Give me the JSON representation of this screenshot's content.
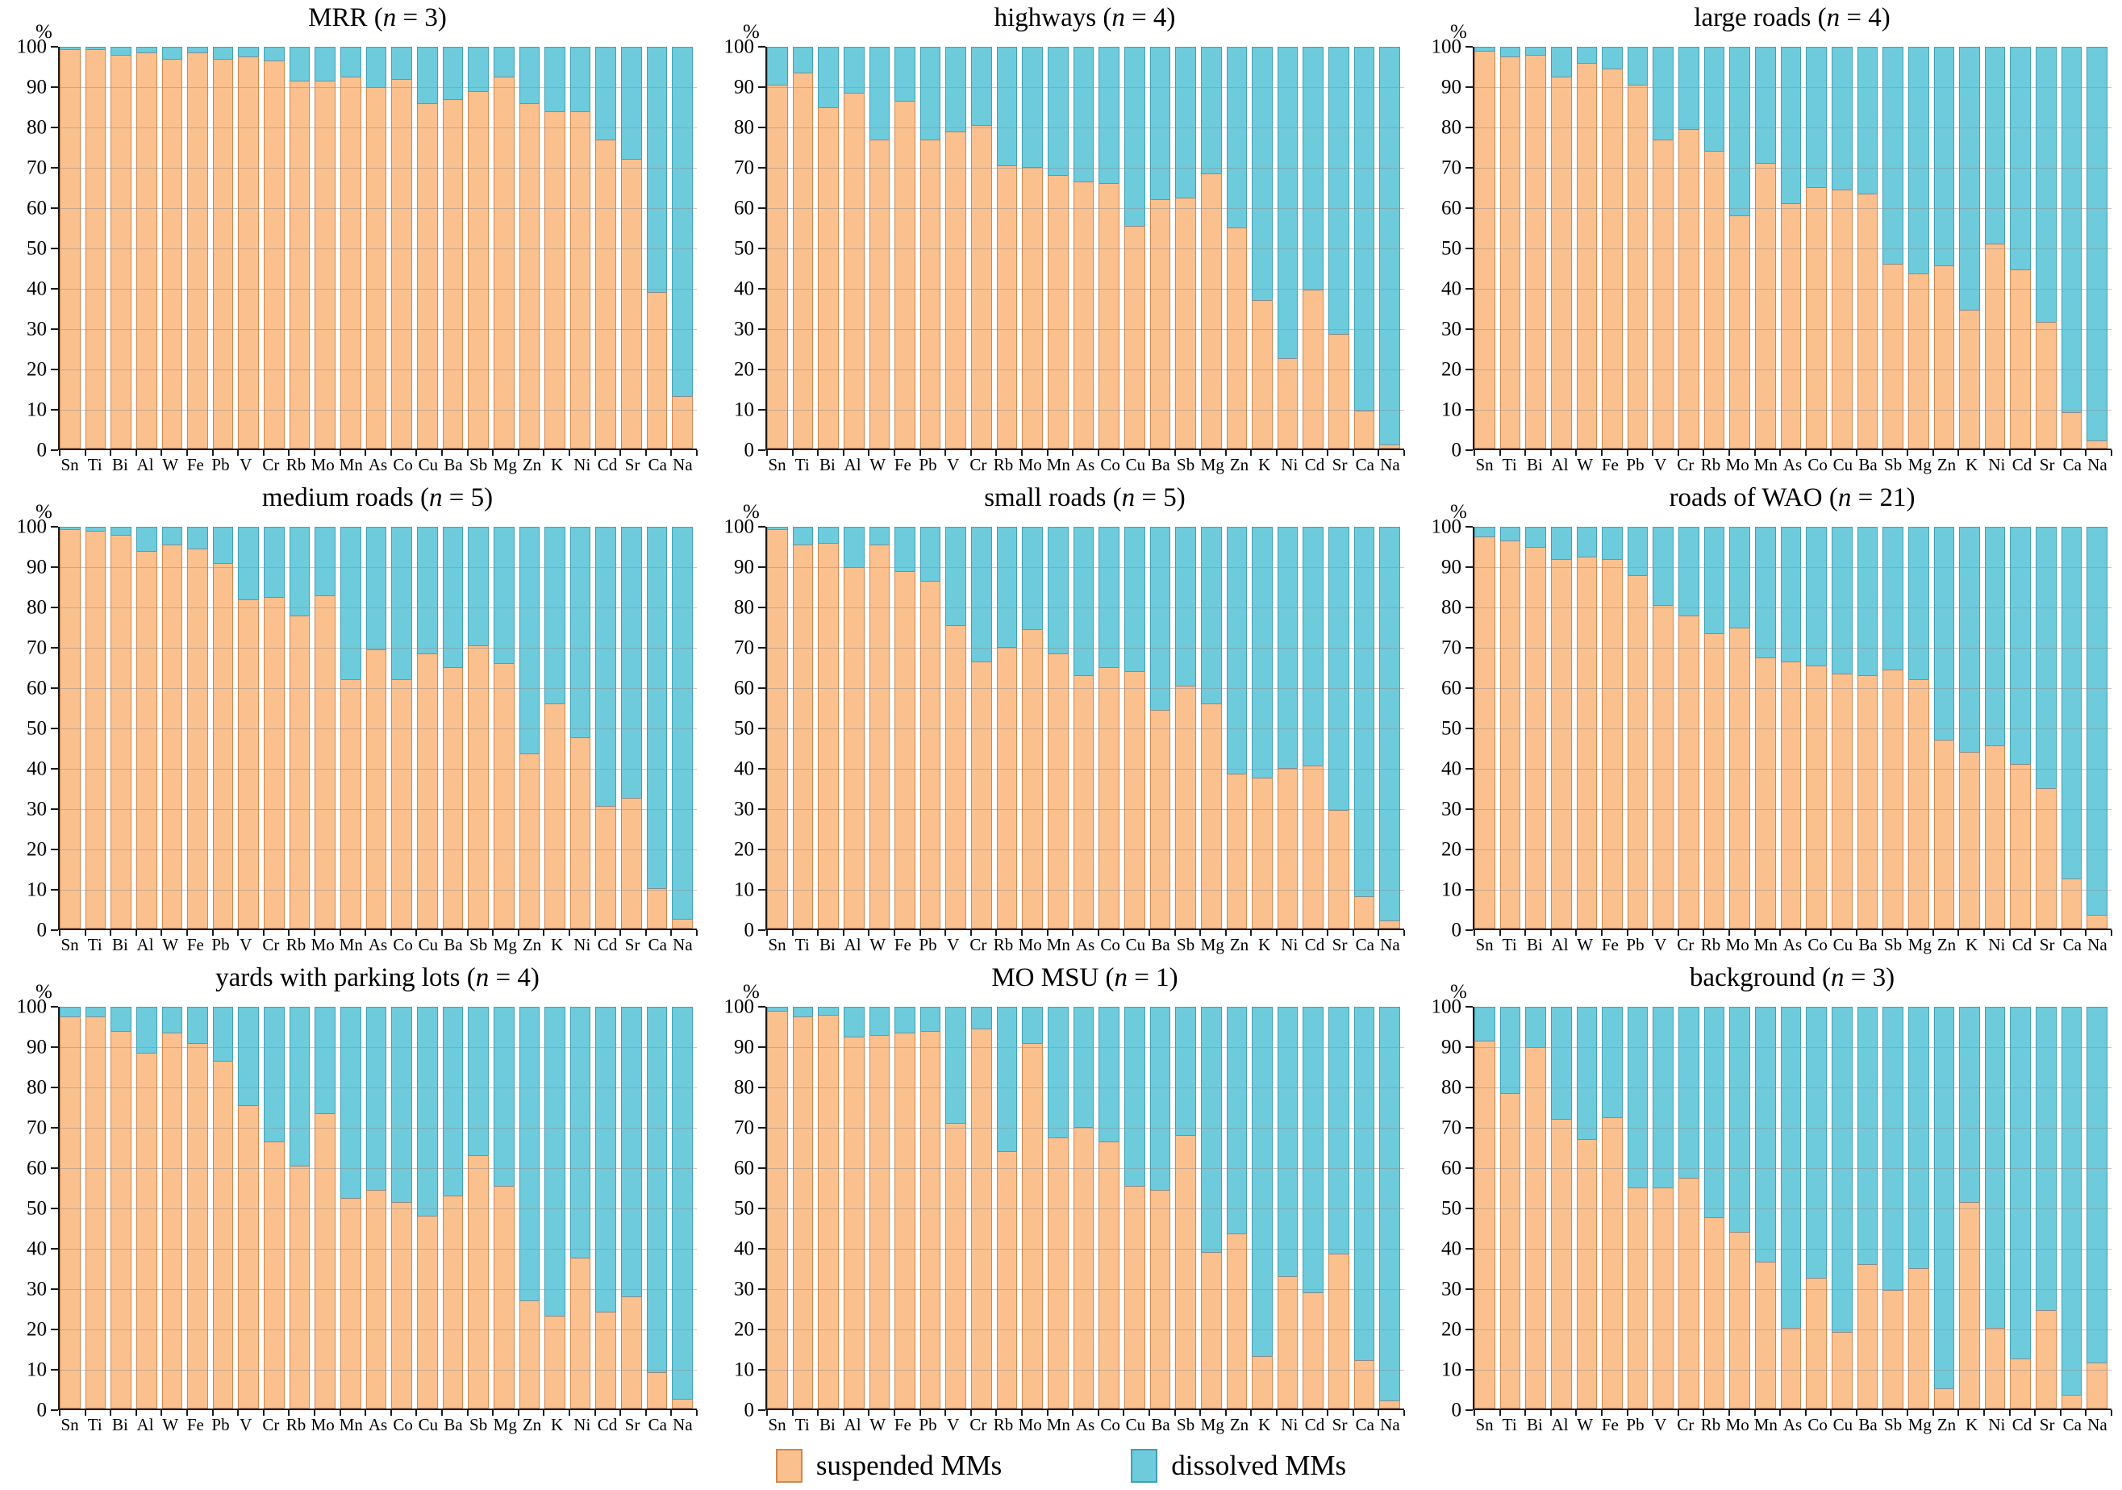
{
  "figure": {
    "ylabel": "%",
    "y_ticks": [
      0,
      10,
      20,
      30,
      40,
      50,
      60,
      70,
      80,
      90,
      100
    ],
    "colors": {
      "suspended": "#FAC08E",
      "suspended_edge": "#D0874E",
      "dissolved": "#6DCBDC",
      "dissolved_edge": "#3FA0B5"
    },
    "legend": [
      {
        "label": "suspended MMs",
        "color": "#FAC08E"
      },
      {
        "label": "dissolved MMs",
        "color": "#6DCBDC"
      }
    ]
  },
  "chart_data": [
    {
      "type": "bar",
      "stacked": true,
      "title": "MRR (n = 3)",
      "group": "MRR",
      "n": 3,
      "ylabel": "%",
      "ylim": [
        0,
        100
      ],
      "grid": true,
      "legend_position": "bottom",
      "categories": [
        "Sn",
        "Ti",
        "Bi",
        "Al",
        "W",
        "Fe",
        "Pb",
        "V",
        "Cr",
        "Rb",
        "Mo",
        "Mn",
        "As",
        "Co",
        "Cu",
        "Ba",
        "Sb",
        "Mg",
        "Zn",
        "K",
        "Ni",
        "Cd",
        "Sr",
        "Ca",
        "Na"
      ],
      "series": [
        {
          "name": "suspended MMs",
          "values": [
            99.5,
            99.5,
            98,
            98.5,
            97,
            98.5,
            97,
            97.5,
            96.5,
            91.5,
            91.5,
            92.5,
            90,
            92,
            86,
            87,
            89,
            92.5,
            86,
            84,
            84,
            77,
            72,
            39,
            13
          ]
        },
        {
          "name": "dissolved MMs",
          "values": [
            0.5,
            0.5,
            2,
            1.5,
            3,
            1.5,
            3,
            2.5,
            3.5,
            8.5,
            8.5,
            7.5,
            10,
            8,
            14,
            13,
            11,
            7.5,
            14,
            16,
            16,
            23,
            28,
            61,
            87
          ]
        }
      ]
    },
    {
      "type": "bar",
      "stacked": true,
      "title": "highways (n = 4)",
      "group": "highways",
      "n": 4,
      "ylabel": "%",
      "ylim": [
        0,
        100
      ],
      "grid": true,
      "legend_position": "bottom",
      "categories": [
        "Sn",
        "Ti",
        "Bi",
        "Al",
        "W",
        "Fe",
        "Pb",
        "V",
        "Cr",
        "Rb",
        "Mo",
        "Mn",
        "As",
        "Co",
        "Cu",
        "Ba",
        "Sb",
        "Mg",
        "Zn",
        "K",
        "Ni",
        "Cd",
        "Sr",
        "Ca",
        "Na"
      ],
      "series": [
        {
          "name": "suspended MMs",
          "values": [
            90.5,
            93.5,
            85,
            88.5,
            77,
            86.5,
            77,
            79,
            80.5,
            70.5,
            70,
            68,
            66.5,
            66,
            55.5,
            62,
            62.5,
            68.5,
            55,
            37,
            22.5,
            39.5,
            28.5,
            9.5,
            1
          ]
        },
        {
          "name": "dissolved MMs",
          "values": [
            9.5,
            6.5,
            15,
            11.5,
            23,
            13.5,
            23,
            21,
            19.5,
            29.5,
            30,
            32,
            33.5,
            34,
            44.5,
            38,
            37.5,
            31.5,
            45,
            63,
            77.5,
            60.5,
            71.5,
            90.5,
            99
          ]
        }
      ]
    },
    {
      "type": "bar",
      "stacked": true,
      "title": "large roads (n = 4)",
      "group": "large roads",
      "n": 4,
      "ylabel": "%",
      "ylim": [
        0,
        100
      ],
      "grid": true,
      "legend_position": "bottom",
      "categories": [
        "Sn",
        "Ti",
        "Bi",
        "Al",
        "W",
        "Fe",
        "Pb",
        "V",
        "Cr",
        "Rb",
        "Mo",
        "Mn",
        "As",
        "Co",
        "Cu",
        "Ba",
        "Sb",
        "Mg",
        "Zn",
        "K",
        "Ni",
        "Cd",
        "Sr",
        "Ca",
        "Na"
      ],
      "series": [
        {
          "name": "suspended MMs",
          "values": [
            99,
            97.5,
            98,
            92.5,
            96,
            94.5,
            90.5,
            77,
            79.5,
            74,
            58,
            71,
            61,
            65,
            64.5,
            63.5,
            46,
            43.5,
            45.5,
            34.5,
            51,
            44.5,
            31.5,
            9,
            2
          ]
        },
        {
          "name": "dissolved MMs",
          "values": [
            1,
            2.5,
            2,
            7.5,
            4,
            5.5,
            9.5,
            23,
            20.5,
            26,
            42,
            29,
            39,
            35,
            35.5,
            36.5,
            54,
            56.5,
            54.5,
            65.5,
            49,
            55.5,
            68.5,
            91,
            98
          ]
        }
      ]
    },
    {
      "type": "bar",
      "stacked": true,
      "title": "medium roads (n = 5)",
      "group": "medium roads",
      "n": 5,
      "ylabel": "%",
      "ylim": [
        0,
        100
      ],
      "grid": true,
      "legend_position": "bottom",
      "categories": [
        "Sn",
        "Ti",
        "Bi",
        "Al",
        "W",
        "Fe",
        "Pb",
        "V",
        "Cr",
        "Rb",
        "Mo",
        "Mn",
        "As",
        "Co",
        "Cu",
        "Ba",
        "Sb",
        "Mg",
        "Zn",
        "K",
        "Ni",
        "Cd",
        "Sr",
        "Ca",
        "Na"
      ],
      "series": [
        {
          "name": "suspended MMs",
          "values": [
            99.5,
            99,
            98,
            94,
            95.5,
            94.5,
            91,
            82,
            82.5,
            78,
            83,
            62,
            69.5,
            62,
            68.5,
            65,
            70.5,
            66,
            43.5,
            56,
            47.5,
            30.5,
            32.5,
            10,
            2.5
          ]
        },
        {
          "name": "dissolved MMs",
          "values": [
            0.5,
            1,
            2,
            6,
            4.5,
            5.5,
            9,
            18,
            17.5,
            22,
            17,
            38,
            30.5,
            38,
            31.5,
            35,
            29.5,
            34,
            56.5,
            44,
            52.5,
            69.5,
            67.5,
            90,
            97.5
          ]
        }
      ]
    },
    {
      "type": "bar",
      "stacked": true,
      "title": "small roads (n = 5)",
      "group": "small roads",
      "n": 5,
      "ylabel": "%",
      "ylim": [
        0,
        100
      ],
      "grid": true,
      "legend_position": "bottom",
      "categories": [
        "Sn",
        "Ti",
        "Bi",
        "Al",
        "W",
        "Fe",
        "Pb",
        "V",
        "Cr",
        "Rb",
        "Mo",
        "Mn",
        "As",
        "Co",
        "Cu",
        "Ba",
        "Sb",
        "Mg",
        "Zn",
        "K",
        "Ni",
        "Cd",
        "Sr",
        "Ca",
        "Na"
      ],
      "series": [
        {
          "name": "suspended MMs",
          "values": [
            99.5,
            95.5,
            96,
            90,
            95.5,
            89,
            86.5,
            75.5,
            66.5,
            70,
            74.5,
            68.5,
            63,
            65,
            64,
            54.5,
            60.5,
            56,
            38.5,
            37.5,
            40,
            40.5,
            29.5,
            8,
            2
          ]
        },
        {
          "name": "dissolved MMs",
          "values": [
            0.5,
            4.5,
            4,
            10,
            4.5,
            11,
            13.5,
            24.5,
            33.5,
            30,
            25.5,
            31.5,
            37,
            35,
            36,
            45.5,
            39.5,
            44,
            61.5,
            62.5,
            60,
            59.5,
            70.5,
            92,
            98
          ]
        }
      ]
    },
    {
      "type": "bar",
      "stacked": true,
      "title": "roads of WAO (n = 21)",
      "group": "roads of WAO",
      "n": 21,
      "ylabel": "%",
      "ylim": [
        0,
        100
      ],
      "grid": true,
      "legend_position": "bottom",
      "categories": [
        "Sn",
        "Ti",
        "Bi",
        "Al",
        "W",
        "Fe",
        "Pb",
        "V",
        "Cr",
        "Rb",
        "Mo",
        "Mn",
        "As",
        "Co",
        "Cu",
        "Ba",
        "Sb",
        "Mg",
        "Zn",
        "K",
        "Ni",
        "Cd",
        "Sr",
        "Ca",
        "Na"
      ],
      "series": [
        {
          "name": "suspended MMs",
          "values": [
            97.5,
            96.5,
            95,
            92,
            92.5,
            92,
            88,
            80.5,
            78,
            73.5,
            75,
            67.5,
            66.5,
            65.5,
            63.5,
            63,
            64.5,
            62,
            47,
            44,
            45.5,
            41,
            35,
            12.5,
            3.5
          ]
        },
        {
          "name": "dissolved MMs",
          "values": [
            2.5,
            3.5,
            5,
            8,
            7.5,
            8,
            12,
            19.5,
            22,
            26.5,
            25,
            32.5,
            33.5,
            34.5,
            36.5,
            37,
            35.5,
            38,
            53,
            56,
            54.5,
            59,
            65,
            87.5,
            96.5
          ]
        }
      ]
    },
    {
      "type": "bar",
      "stacked": true,
      "title": "yards with parking lots (n = 4)",
      "group": "yards with parking lots",
      "n": 4,
      "ylabel": "%",
      "ylim": [
        0,
        100
      ],
      "grid": true,
      "legend_position": "bottom",
      "categories": [
        "Sn",
        "Ti",
        "Bi",
        "Al",
        "W",
        "Fe",
        "Pb",
        "V",
        "Cr",
        "Rb",
        "Mo",
        "Mn",
        "As",
        "Co",
        "Cu",
        "Ba",
        "Sb",
        "Mg",
        "Zn",
        "K",
        "Ni",
        "Cd",
        "Sr",
        "Ca",
        "Na"
      ],
      "series": [
        {
          "name": "suspended MMs",
          "values": [
            97.5,
            97.5,
            94,
            88.5,
            93.5,
            91,
            86.5,
            75.5,
            66.5,
            60.5,
            73.5,
            52.5,
            54.5,
            51.5,
            48,
            53,
            63,
            55.5,
            27,
            23,
            37.5,
            24,
            28,
            9,
            2.5
          ]
        },
        {
          "name": "dissolved MMs",
          "values": [
            2.5,
            2.5,
            6,
            11.5,
            6.5,
            9,
            13.5,
            24.5,
            33.5,
            39.5,
            26.5,
            47.5,
            45.5,
            48.5,
            52,
            47,
            37,
            44.5,
            73,
            77,
            62.5,
            76,
            72,
            91,
            97.5
          ]
        }
      ]
    },
    {
      "type": "bar",
      "stacked": true,
      "title": "MO MSU (n = 1)",
      "group": "MO MSU",
      "n": 1,
      "ylabel": "%",
      "ylim": [
        0,
        100
      ],
      "grid": true,
      "legend_position": "bottom",
      "categories": [
        "Sn",
        "Ti",
        "Bi",
        "Al",
        "W",
        "Fe",
        "Pb",
        "V",
        "Cr",
        "Rb",
        "Mo",
        "Mn",
        "As",
        "Co",
        "Cu",
        "Ba",
        "Sb",
        "Mg",
        "Zn",
        "K",
        "Ni",
        "Cd",
        "Sr",
        "Ca",
        "Na"
      ],
      "series": [
        {
          "name": "suspended MMs",
          "values": [
            99,
            97.5,
            98,
            92.5,
            93,
            93.5,
            94,
            71,
            94.5,
            64,
            91,
            67.5,
            70,
            66.5,
            55.5,
            54.5,
            68,
            39,
            43.5,
            13,
            33,
            29,
            38.5,
            12,
            2
          ]
        },
        {
          "name": "dissolved MMs",
          "values": [
            1,
            2.5,
            2,
            7.5,
            7,
            6.5,
            6,
            29,
            5.5,
            36,
            9,
            32.5,
            30,
            33.5,
            44.5,
            45.5,
            32,
            61,
            56.5,
            87,
            67,
            71,
            61.5,
            88,
            98
          ]
        }
      ]
    },
    {
      "type": "bar",
      "stacked": true,
      "title": "background (n = 3)",
      "group": "background",
      "n": 3,
      "ylabel": "%",
      "ylim": [
        0,
        100
      ],
      "grid": true,
      "legend_position": "bottom",
      "categories": [
        "Sn",
        "Ti",
        "Bi",
        "Al",
        "W",
        "Fe",
        "Pb",
        "V",
        "Cr",
        "Rb",
        "Mo",
        "Mn",
        "As",
        "Co",
        "Cu",
        "Ba",
        "Sb",
        "Mg",
        "Zn",
        "K",
        "Ni",
        "Cd",
        "Sr",
        "Ca",
        "Na"
      ],
      "series": [
        {
          "name": "suspended MMs",
          "values": [
            91.5,
            78.5,
            90,
            72,
            67,
            72.5,
            55,
            55,
            57.5,
            47.5,
            44,
            36.5,
            20,
            32.5,
            19,
            36,
            29.5,
            35,
            5,
            51.5,
            20,
            12.5,
            24.5,
            3.5,
            11.5
          ]
        },
        {
          "name": "dissolved MMs",
          "values": [
            8.5,
            21.5,
            10,
            28,
            33,
            27.5,
            45,
            45,
            42.5,
            52.5,
            56,
            63.5,
            80,
            67.5,
            81,
            64,
            70.5,
            65,
            95,
            48.5,
            80,
            87.5,
            75.5,
            96.5,
            88.5
          ]
        }
      ]
    }
  ]
}
